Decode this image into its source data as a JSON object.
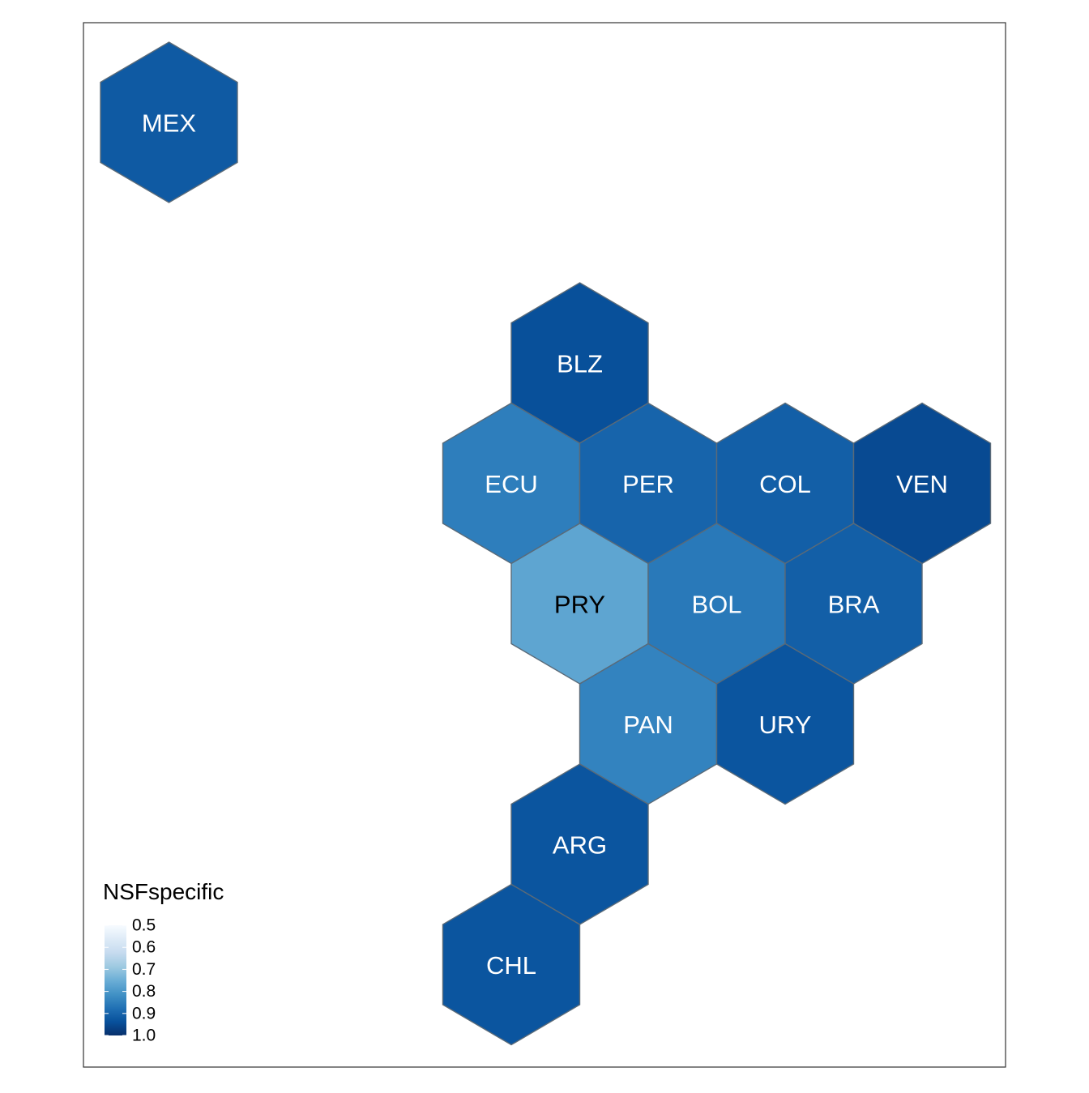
{
  "legend": {
    "title": "NSFspecific",
    "ticks": [
      "0.5",
      "0.6",
      "0.7",
      "0.8",
      "0.9",
      "1.0"
    ],
    "tick_values": [
      0.5,
      0.6,
      0.7,
      0.8,
      0.9,
      1.0
    ],
    "range": [
      0.5,
      1.0
    ],
    "placement": "bottom-left",
    "palette": [
      "#f7fbff",
      "#deebf7",
      "#c6dbef",
      "#9ecae1",
      "#6baed6",
      "#4292c6",
      "#2171b5",
      "#08519c",
      "#08306b"
    ]
  },
  "colors": {
    "hex_border": "#5a6a78",
    "panel_border": "#333333",
    "label_light": "#ffffff",
    "label_dark": "#000000"
  },
  "regions": [
    {
      "code": "MEX",
      "value": 0.92
    },
    {
      "code": "BLZ",
      "value": 0.94
    },
    {
      "code": "ECU",
      "value": 0.85
    },
    {
      "code": "PER",
      "value": 0.9
    },
    {
      "code": "COL",
      "value": 0.91
    },
    {
      "code": "VEN",
      "value": 0.95
    },
    {
      "code": "PRY",
      "value": 0.77
    },
    {
      "code": "BOL",
      "value": 0.86
    },
    {
      "code": "BRA",
      "value": 0.91
    },
    {
      "code": "PAN",
      "value": 0.84
    },
    {
      "code": "URY",
      "value": 0.93
    },
    {
      "code": "ARG",
      "value": 0.93
    },
    {
      "code": "CHL",
      "value": 0.93
    }
  ]
}
